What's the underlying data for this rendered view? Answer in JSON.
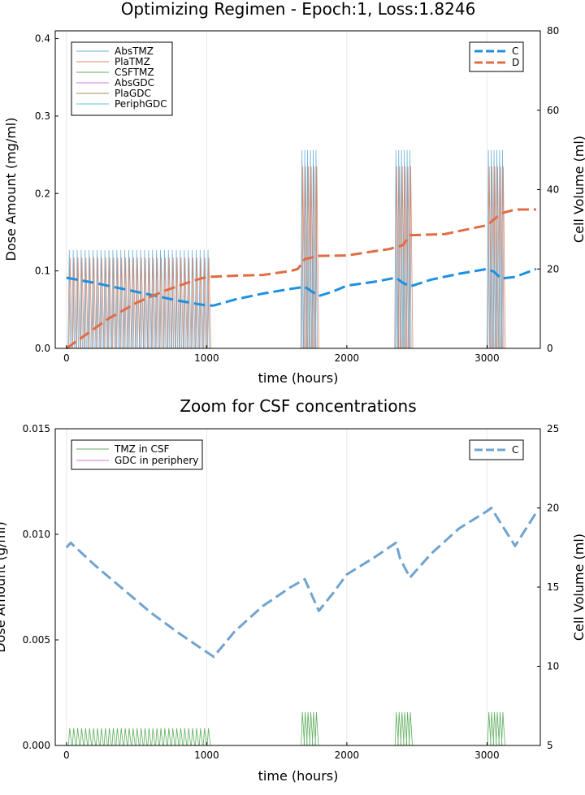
{
  "chart_data": [
    {
      "type": "line",
      "title": "Optimizing Regimen - Epoch:1, Loss:1.8246",
      "xlabel": "time (hours)",
      "ylabel": "Dose Amount (mg/ml)",
      "ylabel_right": "Cell Volume (ml)",
      "xlim": [
        -80,
        3380
      ],
      "ylim": [
        0,
        0.41
      ],
      "ylim_right": [
        0,
        80
      ],
      "x_ticks": [
        "0",
        "1000",
        "2000",
        "3000"
      ],
      "y_ticks": [
        "0.0",
        "0.1",
        "0.2",
        "0.3",
        "0.4"
      ],
      "y_ticks_right": [
        "0",
        "20",
        "40",
        "60",
        "80"
      ],
      "grid": true,
      "legend_left": [
        "AbsTMZ",
        "PlaTMZ",
        "CSFTMZ",
        "AbsGDC",
        "PlaGDC",
        "PeriphGDC"
      ],
      "legend_right": [
        "C",
        "D"
      ],
      "colors": {
        "AbsTMZ": "#6aafd6",
        "PlaTMZ": "#e08a6a",
        "CSFTMZ": "#5fae5f",
        "AbsGDC": "#c77fd6",
        "PlaGDC": "#b08a5a",
        "PeriphGDC": "#5ec5c8",
        "C": "#1e90e0",
        "D": "#e06d45"
      },
      "dose_blocks": [
        {
          "start": 20,
          "end": 1010,
          "count": 36,
          "abs_peak": 0.127,
          "pla_peak": 0.117
        },
        {
          "start": 1680,
          "end": 1780,
          "count": 6,
          "abs_peak": 0.256,
          "pla_peak": 0.235
        },
        {
          "start": 2350,
          "end": 2450,
          "count": 6,
          "abs_peak": 0.256,
          "pla_peak": 0.235
        },
        {
          "start": 3010,
          "end": 3110,
          "count": 6,
          "abs_peak": 0.256,
          "pla_peak": 0.235
        }
      ],
      "series": [
        {
          "name": "C",
          "axis": "right",
          "style": "dash",
          "x": [
            0,
            200,
            400,
            600,
            800,
            1000,
            1050,
            1200,
            1400,
            1600,
            1700,
            1800,
            1900,
            2000,
            2200,
            2350,
            2400,
            2450,
            2600,
            2800,
            3000,
            3050,
            3100,
            3200,
            3350
          ],
          "y": [
            17.8,
            16.5,
            15.0,
            13.5,
            12.0,
            10.8,
            10.8,
            12.3,
            13.8,
            15.0,
            15.5,
            13.2,
            14.3,
            15.8,
            16.8,
            17.8,
            16.5,
            15.6,
            17.3,
            18.8,
            20.0,
            19.3,
            17.6,
            18.0,
            20.0
          ]
        },
        {
          "name": "D",
          "axis": "right",
          "style": "dash",
          "x": [
            0,
            100,
            300,
            500,
            700,
            900,
            1000,
            1200,
            1400,
            1600,
            1650,
            1700,
            1800,
            2000,
            2200,
            2300,
            2400,
            2450,
            2700,
            2900,
            3000,
            3100,
            3200,
            3350
          ],
          "y": [
            0,
            2.5,
            7.5,
            11.5,
            14.5,
            17.0,
            18.0,
            18.3,
            18.5,
            19.5,
            20.0,
            22.5,
            23.3,
            23.4,
            24.5,
            25.0,
            26.0,
            28.5,
            28.8,
            30.3,
            31.0,
            34.0,
            35.0,
            35.0
          ]
        }
      ]
    },
    {
      "type": "line",
      "title": "Zoom for CSF concentrations",
      "xlabel": "time (hours)",
      "ylabel": "Dose Amount (g/ml)",
      "ylabel_right": "Cell Volume (ml)",
      "xlim": [
        -80,
        3380
      ],
      "ylim": [
        0,
        0.015
      ],
      "ylim_right": [
        5,
        25
      ],
      "x_ticks": [
        "0",
        "1000",
        "2000",
        "3000"
      ],
      "y_ticks": [
        "0.000",
        "0.005",
        "0.010",
        "0.015"
      ],
      "y_ticks_right": [
        "5",
        "10",
        "15",
        "20",
        "25"
      ],
      "grid": true,
      "legend_left": [
        "TMZ in CSF",
        "GDC in periphery"
      ],
      "legend_right": [
        "C"
      ],
      "colors": {
        "TMZ in CSF": "#5fae5f",
        "GDC in periphery": "#c77fd6",
        "C": "#6fa3d0"
      },
      "dose_blocks": [
        {
          "start": 20,
          "end": 1010,
          "count": 36,
          "csf_peak": 0.00082
        },
        {
          "start": 1680,
          "end": 1780,
          "count": 6,
          "csf_peak": 0.00158
        },
        {
          "start": 2350,
          "end": 2450,
          "count": 6,
          "csf_peak": 0.00158
        },
        {
          "start": 3010,
          "end": 3110,
          "count": 6,
          "csf_peak": 0.00158
        }
      ],
      "series": [
        {
          "name": "C",
          "axis": "right",
          "style": "dash",
          "x": [
            0,
            30,
            200,
            400,
            600,
            800,
            1000,
            1050,
            1200,
            1400,
            1600,
            1700,
            1750,
            1800,
            1900,
            2000,
            2200,
            2350,
            2380,
            2450,
            2600,
            2800,
            3000,
            3030,
            3100,
            3200,
            3350
          ],
          "y": [
            17.5,
            17.8,
            16.4,
            14.9,
            13.4,
            12.1,
            10.9,
            10.6,
            12.2,
            13.8,
            15.0,
            15.5,
            14.5,
            13.5,
            14.6,
            15.8,
            16.9,
            17.8,
            16.8,
            15.6,
            17.1,
            18.7,
            19.8,
            20.0,
            19.0,
            17.6,
            19.7
          ]
        }
      ]
    }
  ]
}
